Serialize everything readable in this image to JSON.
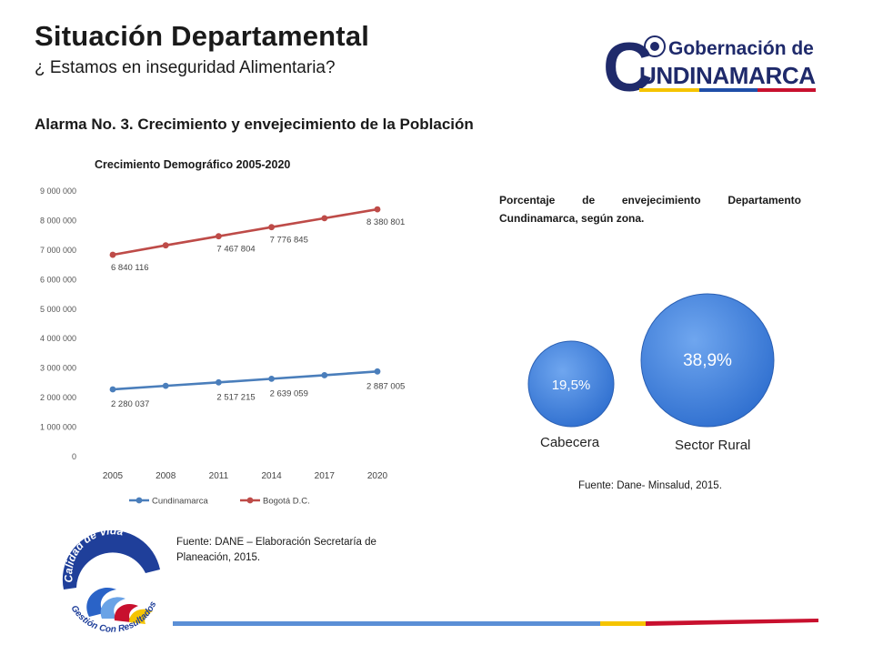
{
  "header": {
    "title": "Situación Departamental",
    "subtitle": "¿ Estamos en inseguridad Alimentaria?",
    "alarm": "Alarma No. 3.  Crecimiento y envejecimiento de la Población"
  },
  "logo_top": {
    "line1": "Gobernación de",
    "line2": "UNDINAMARCA",
    "initial": "C",
    "colors": {
      "navy": "#1f2a6b",
      "red": "#c8102e",
      "yellow": "#f5c400",
      "blue": "#1f4ea8"
    }
  },
  "chart_data": {
    "type": "line",
    "title": "Crecimiento Demográfico 2005-2020",
    "x": [
      2005,
      2008,
      2011,
      2014,
      2017,
      2020
    ],
    "ylim": [
      0,
      9000000
    ],
    "yticks": [
      0,
      1000000,
      2000000,
      3000000,
      4000000,
      5000000,
      6000000,
      7000000,
      8000000,
      9000000
    ],
    "ytick_labels": [
      "0",
      "1 000 000",
      "2 000 000",
      "3 000 000",
      "4 000 000",
      "5 000 000",
      "6 000 000",
      "7 000 000",
      "8 000 000",
      "9 000 000"
    ],
    "grid": false,
    "legend": "bottom",
    "series": [
      {
        "name": "Cundinamarca",
        "color": "#4a7ebb",
        "values": [
          2280037,
          2400000,
          2517215,
          2639059,
          2760000,
          2887005
        ],
        "labels": [
          "2 280 037",
          "",
          "2 517 215",
          "2 639 059",
          "",
          "2 887 005"
        ]
      },
      {
        "name": "Bogotá D.C.",
        "color": "#be4b48",
        "values": [
          6840116,
          7160000,
          7467804,
          7776845,
          8080000,
          8380801
        ],
        "labels": [
          "6 840 116",
          "",
          "7 467 804",
          "7 776 845",
          "",
          "8 380 801"
        ]
      }
    ]
  },
  "source_left": "Fuente: DANE – Elaboración Secretaría de Planeación, 2015.",
  "aging": {
    "title_line1": "Porcentaje de envejecimiento Departamento",
    "title_line2": "Cundinamarca, según zona.",
    "bubbles": [
      {
        "label": "Cabecera",
        "value": 19.5,
        "text": "19,5%"
      },
      {
        "label": "Sector Rural",
        "value": 38.9,
        "text": "38,9%"
      }
    ],
    "color": "#3d7fd9",
    "source": "Fuente: Dane- Minsalud, 2015."
  },
  "logo_bottom": {
    "top_text": "Calidad de Vida",
    "bottom_text": "Gestión Con Resultados"
  }
}
